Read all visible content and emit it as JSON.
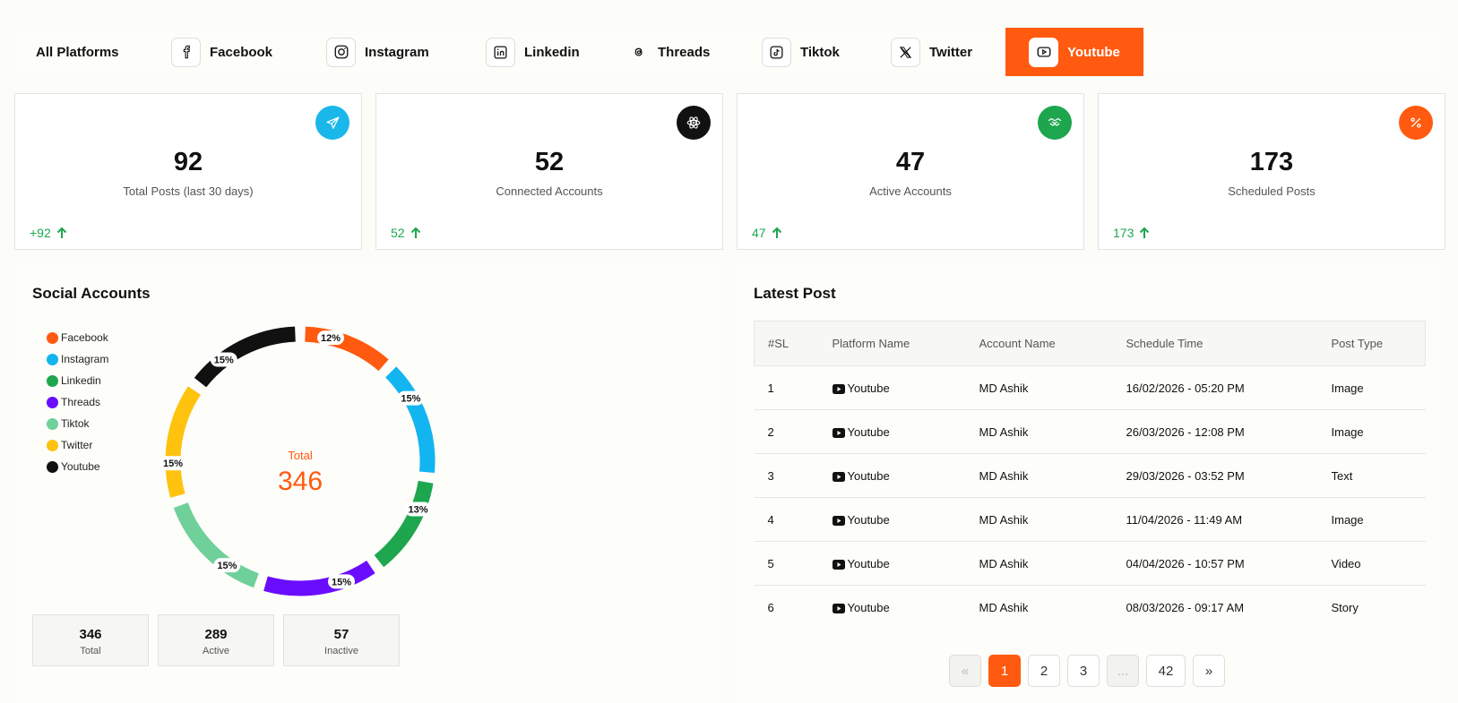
{
  "tabs": [
    {
      "label": "All Platforms",
      "icon": "none"
    },
    {
      "label": "Facebook",
      "icon": "facebook-icon"
    },
    {
      "label": "Instagram",
      "icon": "instagram-icon"
    },
    {
      "label": "Linkedin",
      "icon": "linkedin-icon"
    },
    {
      "label": "Threads",
      "icon": "threads-icon"
    },
    {
      "label": "Tiktok",
      "icon": "tiktok-icon"
    },
    {
      "label": "Twitter",
      "icon": "twitter-x-icon"
    },
    {
      "label": "Youtube",
      "icon": "youtube-icon",
      "active": true
    }
  ],
  "stats": [
    {
      "value": "92",
      "label": "Total Posts (last 30 days)",
      "delta": "+92",
      "icon": "send-icon",
      "color": "#1ab7ea"
    },
    {
      "value": "52",
      "label": "Connected Accounts",
      "delta": "52",
      "icon": "atom-icon",
      "color": "#111111"
    },
    {
      "value": "47",
      "label": "Active Accounts",
      "delta": "47",
      "icon": "handshake-icon",
      "color": "#1ea64f"
    },
    {
      "value": "173",
      "label": "Scheduled Posts",
      "delta": "173",
      "icon": "percent-icon",
      "color": "#ff5a0f"
    }
  ],
  "social": {
    "title": "Social Accounts",
    "center_label": "Total",
    "center_value": "346",
    "totals": [
      {
        "value": "346",
        "label": "Total"
      },
      {
        "value": "289",
        "label": "Active"
      },
      {
        "value": "57",
        "label": "Inactive"
      }
    ]
  },
  "chart_data": {
    "type": "pie",
    "series": [
      {
        "name": "Facebook",
        "value": 12,
        "color": "#ff5a0f"
      },
      {
        "name": "Instagram",
        "value": 15,
        "color": "#12b5f0"
      },
      {
        "name": "Linkedin",
        "value": 13,
        "color": "#1ea64f"
      },
      {
        "name": "Threads",
        "value": 15,
        "color": "#6a0dff"
      },
      {
        "name": "Tiktok",
        "value": 15,
        "color": "#6fd09a"
      },
      {
        "name": "Twitter",
        "value": 15,
        "color": "#ffc20e"
      },
      {
        "name": "Youtube",
        "value": 15,
        "color": "#111111"
      }
    ],
    "data_labels": [
      "12%",
      "15%",
      "13%",
      "15%",
      "15%",
      "15%",
      "15%"
    ],
    "legend_position": "left"
  },
  "latest": {
    "title": "Latest Post",
    "headers": [
      "#SL",
      "Platform Name",
      "Account Name",
      "Schedule Time",
      "Post Type"
    ],
    "rows": [
      [
        "1",
        "Youtube",
        "MD Ashik",
        "16/02/2026 - 05:20 PM",
        "Image"
      ],
      [
        "2",
        "Youtube",
        "MD Ashik",
        "26/03/2026 - 12:08 PM",
        "Image"
      ],
      [
        "3",
        "Youtube",
        "MD Ashik",
        "29/03/2026 - 03:52 PM",
        "Text"
      ],
      [
        "4",
        "Youtube",
        "MD Ashik",
        "11/04/2026 - 11:49 AM",
        "Image"
      ],
      [
        "5",
        "Youtube",
        "MD Ashik",
        "04/04/2026 - 10:57 PM",
        "Video"
      ],
      [
        "6",
        "Youtube",
        "MD Ashik",
        "08/03/2026 - 09:17 AM",
        "Story"
      ]
    ]
  },
  "pagination": {
    "prev": "«",
    "pages": [
      "1",
      "2",
      "3"
    ],
    "ellipsis": "...",
    "last": "42",
    "next": "»",
    "current": "1"
  },
  "colors": {
    "accent": "#ff5a0f",
    "up": "#1ea64f"
  }
}
